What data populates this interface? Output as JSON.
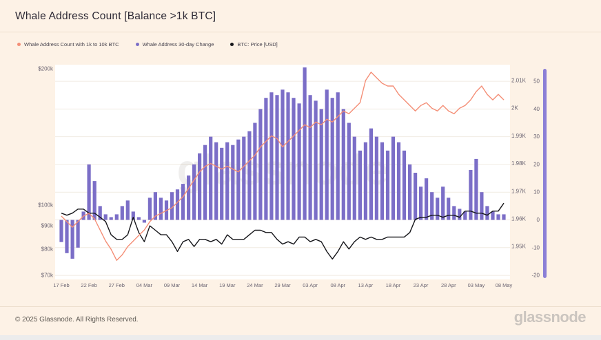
{
  "page": {
    "title": "Whale Address Count [Balance >1k BTC]",
    "watermark": "glassnode",
    "background": "#fdf2e6"
  },
  "legend": {
    "items": [
      {
        "label": "Whale Address Count with 1k to 10k BTC",
        "color": "#f48e76"
      },
      {
        "label": "Whale Address 30-day Change",
        "color": "#7b6ec7"
      },
      {
        "label": "BTC: Price [USD]",
        "color": "#16161a"
      }
    ]
  },
  "footer": {
    "copyright": "© 2025 Glassnode. All Rights Reserved.",
    "brand": "glassnode"
  },
  "chart_data": {
    "type": "mixed",
    "title": "Whale Address Count [Balance >1k BTC]",
    "grid": true,
    "legend_position": "top-left",
    "x_tick_labels": [
      "17 Feb",
      "22 Feb",
      "27 Feb",
      "04 Mar",
      "09 Mar",
      "14 Mar",
      "19 Mar",
      "24 Mar",
      "29 Mar",
      "03 Apr",
      "08 Apr",
      "13 Apr",
      "18 Apr",
      "23 Apr",
      "28 Apr",
      "03 May",
      "08 May"
    ],
    "x_tick_indices": [
      0,
      5,
      10,
      15,
      20,
      25,
      30,
      35,
      40,
      45,
      50,
      55,
      60,
      65,
      70,
      75,
      80
    ],
    "axes": {
      "price_left": {
        "scale": "log",
        "unit": "USD",
        "tick_labels": [
          "$200k",
          "$100k",
          "$90k",
          "$80k",
          "$70k"
        ],
        "tick_values": [
          200,
          100,
          90,
          80,
          70
        ]
      },
      "count_right": {
        "scale": "linear",
        "unit": "addresses (K)",
        "tick_labels": [
          "2.01K",
          "2K",
          "1.99K",
          "1.98K",
          "1.97K",
          "1.96K",
          "1.95K"
        ],
        "tick_values": [
          2010,
          2000,
          1990,
          1980,
          1970,
          1960,
          1950
        ]
      },
      "change_right": {
        "scale": "linear",
        "unit": "addresses",
        "tick_labels": [
          "50",
          "40",
          "30",
          "20",
          "10",
          "0",
          "-10",
          "-20"
        ],
        "tick_values": [
          50,
          40,
          30,
          20,
          10,
          0,
          -10,
          -20
        ],
        "range": [
          -20,
          57
        ]
      }
    },
    "series": [
      {
        "name": "Whale Address Count with 1k to 10k BTC",
        "type": "line",
        "color": "#f48e76",
        "axis": "count_right",
        "values": [
          1961,
          1959,
          1957,
          1959,
          1961,
          1962,
          1960,
          1956,
          1952,
          1949,
          1945,
          1947,
          1950,
          1952,
          1954,
          1956,
          1959,
          1961,
          1962,
          1963,
          1964,
          1966,
          1968,
          1971,
          1974,
          1977,
          1979,
          1980,
          1979,
          1978,
          1979,
          1978,
          1977,
          1979,
          1981,
          1983,
          1986,
          1988,
          1990,
          1989,
          1986,
          1988,
          1990,
          1992,
          1994,
          1993,
          1995,
          1994,
          1996,
          1995,
          1997,
          1999,
          1998,
          2000,
          2002,
          2010,
          2013,
          2011,
          2009,
          2008,
          2008,
          2005,
          2003,
          2001,
          1999,
          2001,
          2002,
          2000,
          1999,
          2001,
          1999,
          1998,
          2000,
          2001,
          2003,
          2006,
          2008,
          2005,
          2003,
          2005,
          2003
        ]
      },
      {
        "name": "Whale Address 30-day Change",
        "type": "bar",
        "color": "#7b6ec7",
        "axis": "change_right",
        "values": [
          -8,
          -12,
          -14,
          -10,
          3,
          20,
          14,
          5,
          2,
          1,
          2,
          5,
          7,
          3,
          1,
          -1,
          8,
          10,
          8,
          7,
          10,
          11,
          13,
          16,
          20,
          24,
          27,
          30,
          28,
          26,
          28,
          27,
          29,
          30,
          32,
          35,
          40,
          44,
          46,
          45,
          47,
          46,
          44,
          42,
          55,
          45,
          43,
          40,
          47,
          44,
          46,
          40,
          35,
          30,
          25,
          28,
          33,
          30,
          28,
          25,
          30,
          28,
          25,
          20,
          17,
          12,
          15,
          10,
          8,
          12,
          8,
          5,
          4,
          3,
          18,
          22,
          10,
          5,
          3,
          2,
          2
        ]
      },
      {
        "name": "BTC: Price [USD]",
        "type": "line",
        "color": "#16161a",
        "axis": "price_left",
        "unit": "USD thousands",
        "values": [
          96,
          95,
          96,
          98,
          98,
          96,
          96,
          94,
          92,
          86,
          84,
          84,
          86,
          94,
          87,
          83,
          90,
          88,
          86,
          86,
          83,
          79,
          83,
          84,
          81,
          84,
          84,
          83,
          84,
          82,
          86,
          84,
          84,
          84,
          86,
          88,
          88,
          87,
          87,
          84,
          82,
          83,
          82,
          85,
          85,
          83,
          84,
          83,
          79,
          76,
          79,
          83,
          80,
          83,
          85,
          84,
          85,
          84,
          84,
          85,
          85,
          85,
          85,
          87,
          93,
          94,
          94,
          95,
          95,
          94,
          95,
          95,
          94,
          97,
          97,
          96,
          96,
          95,
          97,
          97,
          101
        ]
      }
    ]
  }
}
